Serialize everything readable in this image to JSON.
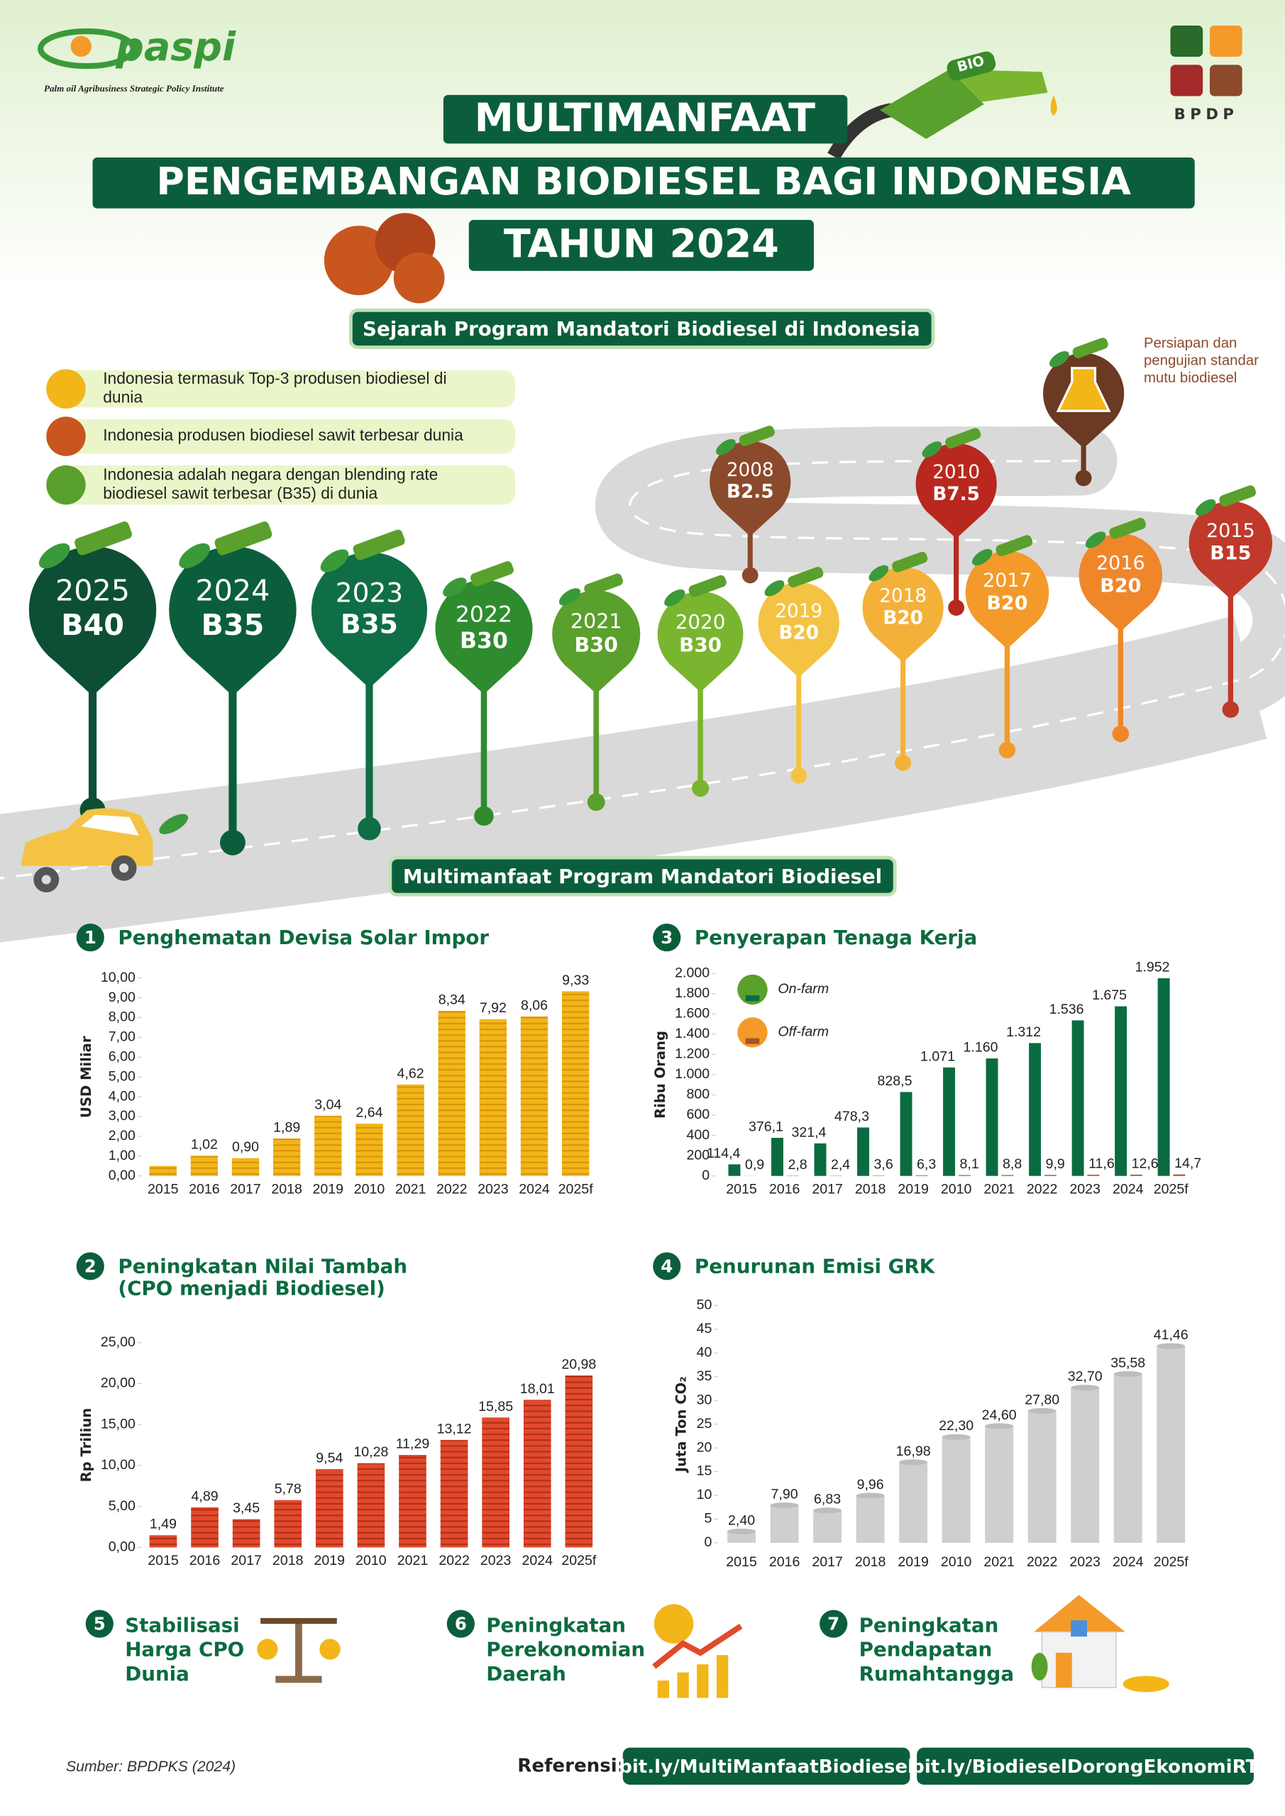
{
  "header": {
    "logo": "paspi",
    "logo_tagline": "Palm oil Agribusiness Strategic Policy Institute",
    "partner": "BPDP",
    "pump_label": "BIO",
    "title_lines": [
      "MULTIMANFAAT",
      "PENGEMBANGAN BIODIESEL BAGI INDONESIA",
      "TAHUN 2024"
    ]
  },
  "timeline": {
    "title": "Sejarah Program Mandatori Biodiesel di Indonesia",
    "facts": [
      {
        "lines": [
          "Indonesia termasuk Top-3 produsen biodiesel di",
          "dunia"
        ]
      },
      {
        "lines": [
          "Indonesia produsen biodiesel sawit terbesar dunia"
        ]
      },
      {
        "lines": [
          "Indonesia adalah negara dengan blending rate",
          "biodiesel sawit terbesar (B35) di dunia"
        ]
      }
    ],
    "note_lines": [
      "Persiapan dan",
      "pengujian standar",
      "mutu biodiesel"
    ],
    "milestones": [
      {
        "year": "2025",
        "blend": "B40"
      },
      {
        "year": "2024",
        "blend": "B35"
      },
      {
        "year": "2023",
        "blend": "B35"
      },
      {
        "year": "2022",
        "blend": "B30"
      },
      {
        "year": "2021",
        "blend": "B30"
      },
      {
        "year": "2020",
        "blend": "B30"
      },
      {
        "year": "2019",
        "blend": "B20"
      },
      {
        "year": "2018",
        "blend": "B20"
      },
      {
        "year": "2017",
        "blend": "B20"
      },
      {
        "year": "2016",
        "blend": "B20"
      },
      {
        "year": "2015",
        "blend": "B15"
      },
      {
        "year": "2010",
        "blend": "B7.5"
      },
      {
        "year": "2008",
        "blend": "B2.5"
      }
    ]
  },
  "benefits_title": "Multimanfaat Program Mandatori Biodiesel",
  "chart_data": [
    {
      "type": "bar",
      "number": "1",
      "title": "Penghematan Devisa Solar Impor",
      "ylabel": "USD Miliar",
      "color": "#f2b619",
      "categories": [
        "2015",
        "2016",
        "2017",
        "2018",
        "2019",
        "2010",
        "2021",
        "2022",
        "2023",
        "2024",
        "2025f"
      ],
      "values": [
        0.5,
        1.02,
        0.9,
        1.89,
        3.04,
        2.64,
        4.62,
        8.34,
        7.92,
        8.06,
        9.33
      ],
      "value_labels": [
        null,
        "1,02",
        "0,90",
        "1,89",
        "3,04",
        "2,64",
        "4,62",
        "8,34",
        "7,92",
        "8,06",
        "9,33"
      ],
      "ylim": [
        0,
        10
      ],
      "yticks": [
        {
          "value": 0,
          "label": "0,00"
        },
        {
          "value": 1,
          "label": "1,00"
        },
        {
          "value": 2,
          "label": "2,00"
        },
        {
          "value": 3,
          "label": "3,00"
        },
        {
          "value": 4,
          "label": "4,00"
        },
        {
          "value": 5,
          "label": "5,00"
        },
        {
          "value": 6,
          "label": "6,00"
        },
        {
          "value": 7,
          "label": "7,00"
        },
        {
          "value": 8,
          "label": "8,00"
        },
        {
          "value": 9,
          "label": "9,00"
        },
        {
          "value": 10,
          "label": "10,00"
        }
      ]
    },
    {
      "type": "bar",
      "number": "2",
      "title": "Peningkatan Nilai Tambah",
      "subtitle": "(CPO menjadi Biodiesel)",
      "ylabel": "Rp Triliun",
      "color": "#d9452b",
      "categories": [
        "2015",
        "2016",
        "2017",
        "2018",
        "2019",
        "2010",
        "2021",
        "2022",
        "2023",
        "2024",
        "2025f"
      ],
      "values": [
        1.49,
        4.89,
        3.45,
        5.78,
        9.54,
        10.28,
        11.29,
        13.12,
        15.85,
        18.01,
        20.98
      ],
      "value_labels": [
        "1,49",
        "4,89",
        "3,45",
        "5,78",
        "9,54",
        "10,28",
        "11,29",
        "13,12",
        "15,85",
        "18,01",
        "20,98"
      ],
      "ylim": [
        0,
        25
      ],
      "yticks": [
        {
          "value": 0,
          "label": "0,00"
        },
        {
          "value": 5,
          "label": "5,00"
        },
        {
          "value": 10,
          "label": "10,00"
        },
        {
          "value": 15,
          "label": "15,00"
        },
        {
          "value": 20,
          "label": "20,00"
        },
        {
          "value": 25,
          "label": "25,00"
        }
      ]
    },
    {
      "type": "grouped_bar",
      "number": "3",
      "title": "Penyerapan Tenaga Kerja",
      "ylabel": "Ribu Orang",
      "categories": [
        "2015",
        "2016",
        "2017",
        "2018",
        "2019",
        "2010",
        "2021",
        "2022",
        "2023",
        "2024",
        "2025f"
      ],
      "series": [
        {
          "name": "On-farm",
          "color": "#0b6b40",
          "values": [
            114.4,
            376.1,
            321.4,
            478.3,
            828.5,
            1071,
            1160,
            1312,
            1536,
            1675,
            1952
          ],
          "value_labels": [
            "114,4",
            "376,1",
            "321,4",
            "478,3",
            "828,5",
            "1.071",
            "1.160",
            "1.312",
            "1.536",
            "1.675",
            "1.952"
          ]
        },
        {
          "name": "Off-farm",
          "color": "#a0572a",
          "values": [
            0.9,
            2.8,
            2.4,
            3.6,
            6.3,
            8.1,
            8.8,
            9.9,
            11.6,
            12.6,
            14.7
          ],
          "value_labels": [
            "0,9",
            "2,8",
            "2,4",
            "3,6",
            "6,3",
            "8,1",
            "8,8",
            "9,9",
            "11,6",
            "12,6",
            "14,7"
          ]
        }
      ],
      "ylim": [
        0,
        2000
      ],
      "yticks": [
        0,
        200,
        400,
        600,
        800,
        {
          "value": 1000,
          "label": "1.000"
        },
        {
          "value": 1200,
          "label": "1.200"
        },
        {
          "value": 1400,
          "label": "1.400"
        },
        {
          "value": 1600,
          "label": "1.600"
        },
        {
          "value": 1800,
          "label": "1.800"
        },
        {
          "value": 2000,
          "label": "2.000"
        }
      ]
    },
    {
      "type": "bar",
      "number": "4",
      "title": "Penurunan Emisi GRK",
      "ylabel": "Juta Ton CO₂",
      "color": "#cfcfcf",
      "categories": [
        "2015",
        "2016",
        "2017",
        "2018",
        "2019",
        "2010",
        "2021",
        "2022",
        "2023",
        "2024",
        "2025f"
      ],
      "values": [
        2.4,
        7.9,
        6.83,
        9.96,
        16.98,
        22.3,
        24.6,
        27.8,
        32.7,
        35.58,
        41.46
      ],
      "value_labels": [
        "2,40",
        "7,90",
        "6,83",
        "9,96",
        "16,98",
        "22,30",
        "24,60",
        "27,80",
        "32,70",
        "35,58",
        "41,46"
      ],
      "ylim": [
        0,
        50
      ],
      "yticks": [
        0,
        5,
        10,
        15,
        20,
        25,
        30,
        35,
        40,
        45,
        50
      ]
    }
  ],
  "other_benefits": [
    {
      "number": "5",
      "lines": [
        "Stabilisasi",
        "Harga CPO",
        "Dunia"
      ]
    },
    {
      "number": "6",
      "lines": [
        "Peningkatan",
        "Perekonomian",
        "Daerah"
      ]
    },
    {
      "number": "7",
      "lines": [
        "Peningkatan",
        "Pendapatan",
        "Rumahtangga"
      ]
    }
  ],
  "footer": {
    "source": "Sumber: BPDPKS (2024)",
    "reference_label": "Referensi:",
    "links": [
      "bit.ly/MultiManfaatBiodiesel",
      "bit.ly/BiodieselDorongEkonomiRT"
    ]
  }
}
